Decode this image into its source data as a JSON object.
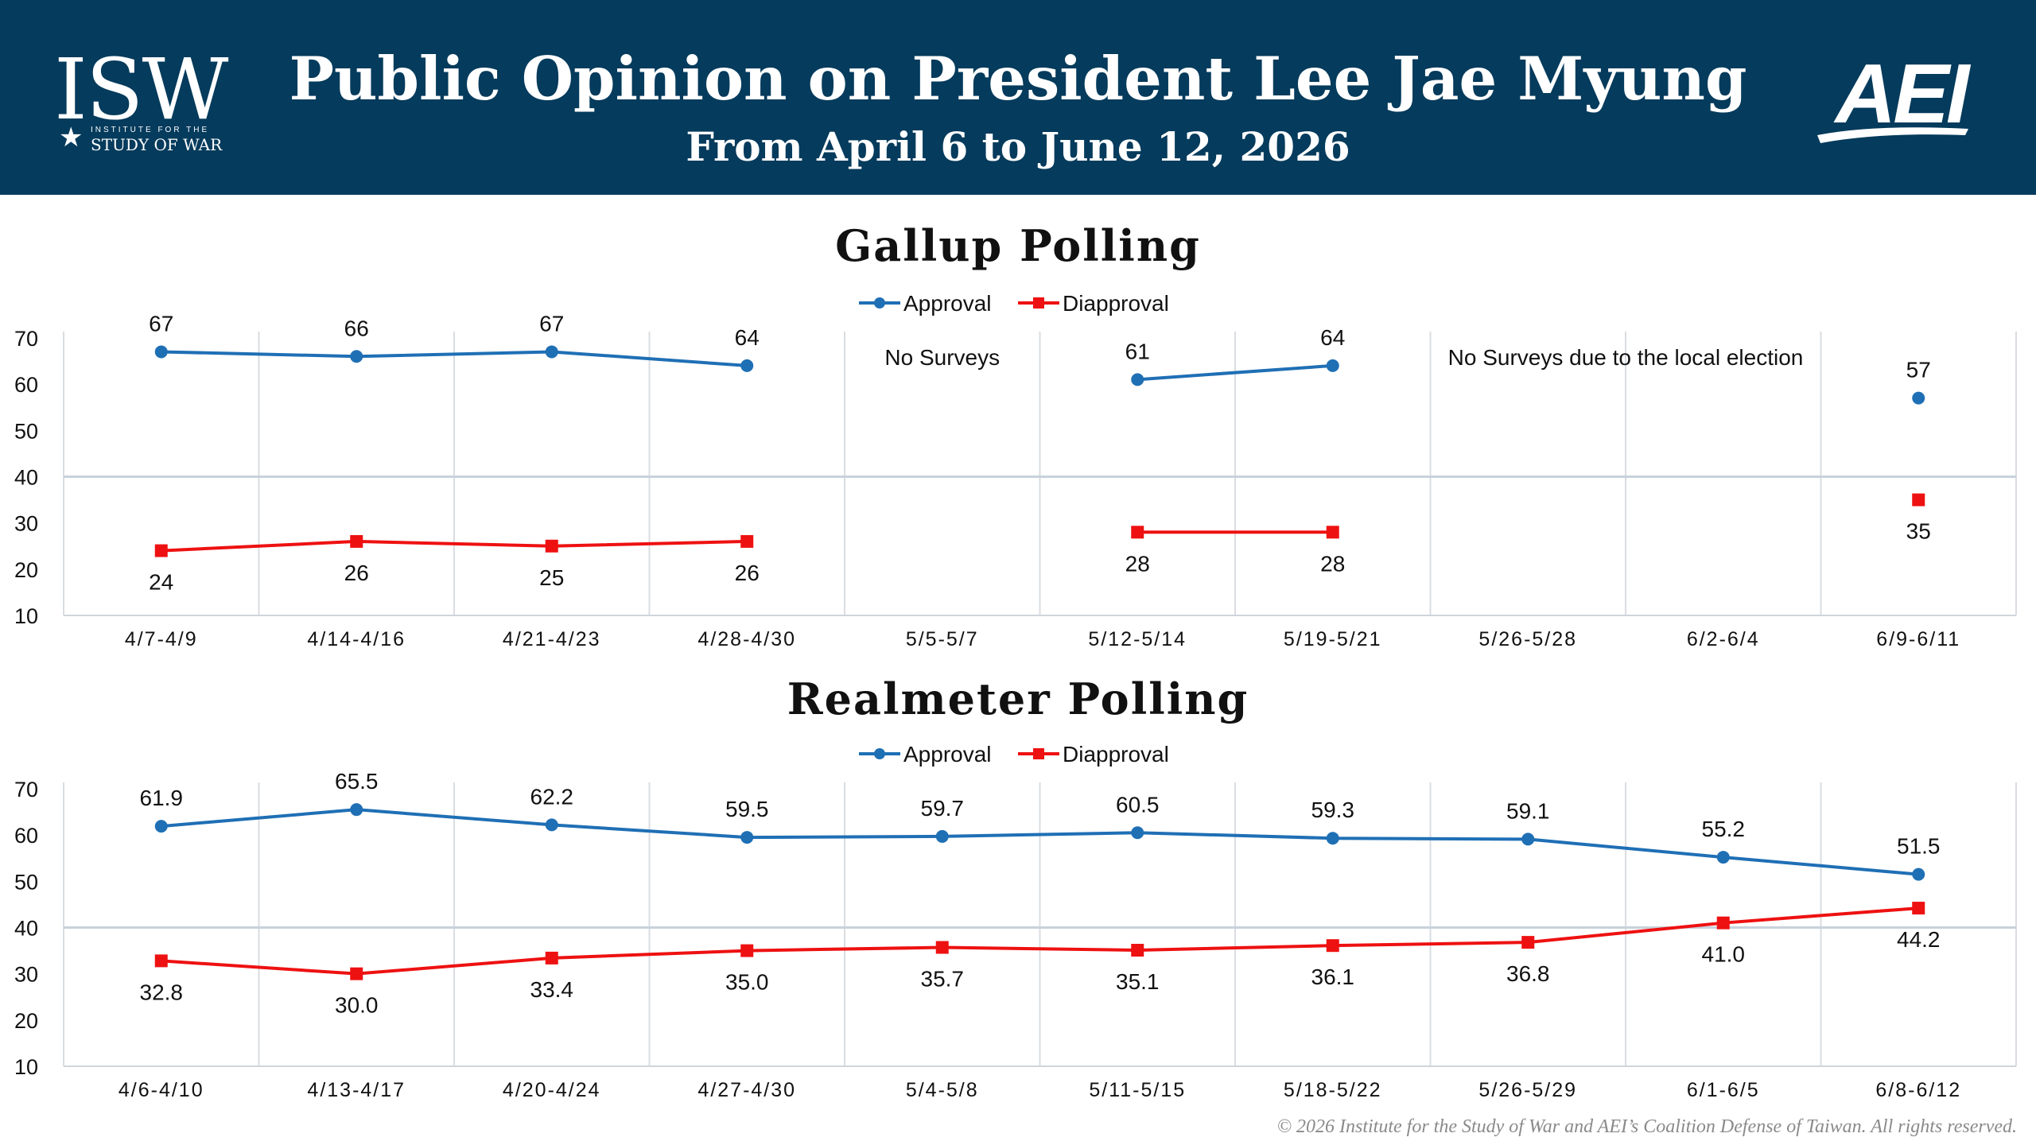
{
  "header": {
    "title": "Public Opinion on President Lee Jae Myung",
    "subtitle": "From April 6 to June 12, 2026",
    "isw_logo": {
      "letters": "ISW",
      "line1": "INSTITUTE FOR THE",
      "line2": "STUDY OF WAR"
    },
    "aei_logo": {
      "text": "AEI"
    },
    "background_color": "#053b5c"
  },
  "footer": {
    "copyright": "© 2026 Institute for the Study of War and AEI’s Coalition Defense of Taiwan. All rights reserved."
  },
  "chart_data": [
    {
      "type": "line",
      "title": "Gallup Polling",
      "legend_position": "top-center",
      "grid": true,
      "ylim": [
        10,
        70
      ],
      "yticks": [
        10,
        20,
        30,
        40,
        50,
        60,
        70
      ],
      "categories": [
        "4/7-4/9",
        "4/14-4/16",
        "4/21-4/23",
        "4/28-4/30",
        "5/5-5/7",
        "5/12-5/14",
        "5/19-5/21",
        "5/26-5/28",
        "6/2-6/4",
        "6/9-6/11"
      ],
      "series": [
        {
          "name": "Approval",
          "color": "#1f6fb5",
          "marker": "circle",
          "label_position": "above",
          "values": [
            67,
            66,
            67,
            64,
            null,
            61,
            64,
            null,
            null,
            57
          ]
        },
        {
          "name": "Diapproval",
          "color": "#ee1111",
          "marker": "square",
          "label_position": "below",
          "values": [
            24,
            26,
            25,
            26,
            null,
            28,
            28,
            null,
            null,
            35
          ]
        }
      ],
      "annotations": [
        {
          "text": "No Surveys",
          "category_index": 4
        },
        {
          "text": "No Surveys due to the local election",
          "category_index": 7.5
        }
      ]
    },
    {
      "type": "line",
      "title": "Realmeter Polling",
      "legend_position": "top-center",
      "grid": true,
      "ylim": [
        10,
        70
      ],
      "yticks": [
        10,
        20,
        30,
        40,
        50,
        60,
        70
      ],
      "categories": [
        "4/6-4/10",
        "4/13-4/17",
        "4/20-4/24",
        "4/27-4/30",
        "5/4-5/8",
        "5/11-5/15",
        "5/18-5/22",
        "5/26-5/29",
        "6/1-6/5",
        "6/8-6/12"
      ],
      "series": [
        {
          "name": "Approval",
          "color": "#1f6fb5",
          "marker": "circle",
          "label_position": "above",
          "values": [
            61.9,
            65.5,
            62.2,
            59.5,
            59.7,
            60.5,
            59.3,
            59.1,
            55.2,
            51.5
          ],
          "labels": [
            "61.9",
            "65.5",
            "62.2",
            "59.5",
            "59.7",
            "60.5",
            "59.3",
            "59.1",
            "55.2",
            "51.5"
          ]
        },
        {
          "name": "Diapproval",
          "color": "#ee1111",
          "marker": "square",
          "label_position": "below",
          "values": [
            32.8,
            30.0,
            33.4,
            35.0,
            35.7,
            35.1,
            36.1,
            36.8,
            41.0,
            44.2
          ],
          "labels": [
            "32.8",
            "30.0",
            "33.4",
            "35.0",
            "35.7",
            "35.1",
            "36.1",
            "36.8",
            "41.0",
            "44.2"
          ]
        }
      ],
      "annotations": []
    }
  ]
}
